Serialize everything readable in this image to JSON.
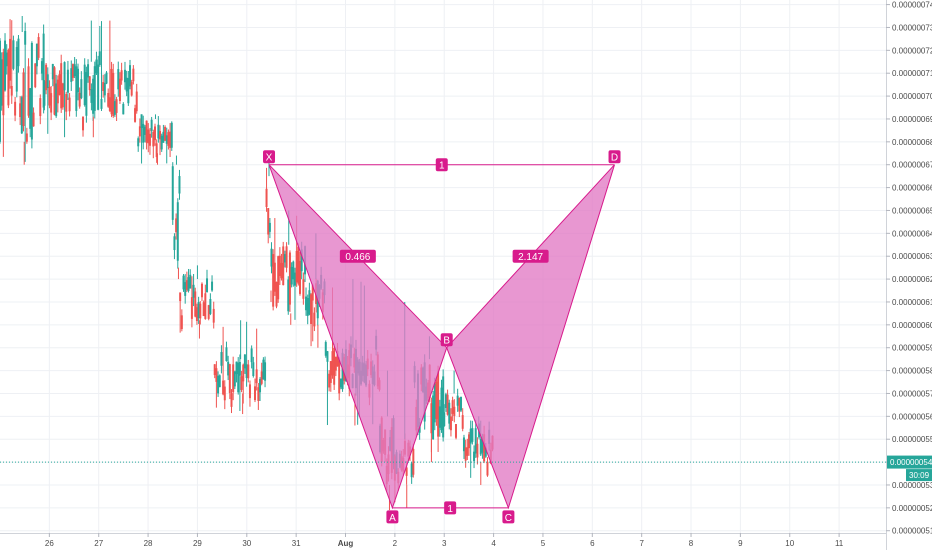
{
  "chart_data": {
    "type": "candlestick",
    "title": "",
    "x_tick_labels": [
      "26",
      "27",
      "28",
      "29",
      "30",
      "31",
      "Aug",
      "2",
      "3",
      "4",
      "5",
      "6",
      "7",
      "8",
      "9",
      "10",
      "11"
    ],
    "x_tick_days": [
      26,
      27,
      28,
      29,
      30,
      31,
      32,
      33,
      34,
      35,
      36,
      37,
      38,
      39,
      40,
      41,
      42
    ],
    "y_tick_labels": [
      "0.00000051",
      "0.00000052",
      "0.00000053",
      "0.00000054",
      "0.00000055",
      "0.00000056",
      "0.00000057",
      "0.00000058",
      "0.00000059",
      "0.00000060",
      "0.00000061",
      "0.00000062",
      "0.00000063",
      "0.00000064",
      "0.00000065",
      "0.00000066",
      "0.00000067",
      "0.00000068",
      "0.00000069",
      "0.00000070",
      "0.00000071",
      "0.00000072",
      "0.00000073",
      "0.00000074"
    ],
    "y_tick_values": [
      51,
      52,
      53,
      54,
      55,
      56,
      57,
      58,
      59,
      60,
      61,
      62,
      63,
      64,
      65,
      66,
      67,
      68,
      69,
      70,
      71,
      72,
      73,
      74
    ],
    "y_unit_note": "values in units of 1e-8",
    "ylim": [
      50.9,
      74.2
    ],
    "xlim": [
      25.0,
      42.95
    ],
    "grid": true,
    "colors": {
      "up": "#26a69a",
      "down": "#ef5350",
      "pattern": "#d81b8c",
      "pattern_fill": "#e27ac4",
      "price_line": "#26a69a"
    },
    "last_price": {
      "value": 54,
      "label": "0.00000054",
      "countdown": "30:09"
    },
    "candle_blocks": [
      {
        "x_start": 25.0,
        "x_end": 25.9,
        "hi": 73.5,
        "lo": 67.0,
        "top": 72.8,
        "bottom": 68.0
      },
      {
        "x_start": 25.9,
        "x_end": 27.8,
        "hi": 73.3,
        "lo": 68.2,
        "top": 71.5,
        "bottom": 69.1
      },
      {
        "x_start": 27.8,
        "x_end": 28.5,
        "hi": 69.2,
        "lo": 67.0,
        "top": 69.0,
        "bottom": 67.5
      },
      {
        "x_start": 28.5,
        "x_end": 28.65,
        "hi": 67.4,
        "lo": 62.0,
        "top": 67.0,
        "bottom": 62.5
      },
      {
        "x_start": 28.65,
        "x_end": 29.35,
        "hi": 62.6,
        "lo": 59.4,
        "top": 62.0,
        "bottom": 60.2
      },
      {
        "x_start": 29.35,
        "x_end": 30.4,
        "hi": 60.2,
        "lo": 56.1,
        "top": 58.5,
        "bottom": 57.0
      },
      {
        "x_start": 30.4,
        "x_end": 30.5,
        "hi": 67.1,
        "lo": 61.0,
        "top": 66.5,
        "bottom": 61.5
      },
      {
        "x_start": 30.5,
        "x_end": 31.2,
        "hi": 65.0,
        "lo": 60.0,
        "top": 63.5,
        "bottom": 60.5
      },
      {
        "x_start": 31.2,
        "x_end": 31.6,
        "hi": 64.0,
        "lo": 59.0,
        "top": 62.0,
        "bottom": 60.0
      },
      {
        "x_start": 31.6,
        "x_end": 32.7,
        "hi": 62.0,
        "lo": 55.6,
        "top": 59.0,
        "bottom": 57.0
      },
      {
        "x_start": 32.7,
        "x_end": 33.0,
        "hi": 58.0,
        "lo": 51.9,
        "top": 56.0,
        "bottom": 53.0
      },
      {
        "x_start": 33.0,
        "x_end": 33.4,
        "hi": 61.0,
        "lo": 52.0,
        "top": 55.0,
        "bottom": 53.0
      },
      {
        "x_start": 33.4,
        "x_end": 34.0,
        "hi": 59.5,
        "lo": 54.0,
        "top": 58.5,
        "bottom": 55.0
      },
      {
        "x_start": 34.0,
        "x_end": 34.4,
        "hi": 58.0,
        "lo": 55.0,
        "top": 57.0,
        "bottom": 55.5
      },
      {
        "x_start": 34.4,
        "x_end": 35.0,
        "hi": 56.0,
        "lo": 53.0,
        "top": 55.5,
        "bottom": 54.0
      }
    ],
    "harmonic_pattern": {
      "points": [
        {
          "label": "X",
          "x": 30.45,
          "y": 67.0
        },
        {
          "label": "A",
          "x": 32.95,
          "y": 52.0
        },
        {
          "label": "B",
          "x": 34.05,
          "y": 59.0
        },
        {
          "label": "C",
          "x": 35.3,
          "y": 52.0
        },
        {
          "label": "D",
          "x": 37.45,
          "y": 67.0
        }
      ],
      "ratios": [
        {
          "label": "0.466",
          "x": 32.25,
          "y": 63.0
        },
        {
          "label": "2.147",
          "x": 35.75,
          "y": 63.0
        },
        {
          "label": "1",
          "x": 33.95,
          "y": 67.0
        },
        {
          "label": "1",
          "x": 34.12,
          "y": 52.0
        }
      ]
    }
  }
}
